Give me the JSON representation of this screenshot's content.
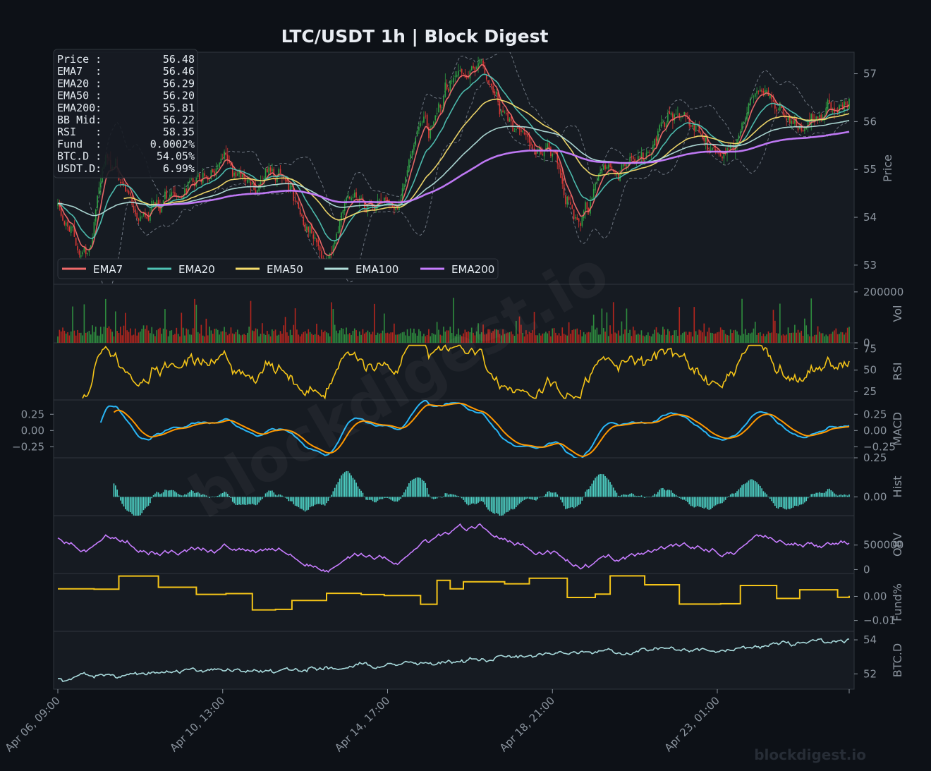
{
  "chart_data": [
    {
      "panel": "price",
      "type": "candlestick",
      "title": "LTC/USDT  1h  |  Block Digest",
      "ylabel": "Price",
      "ylim": [
        52.6,
        57.45
      ],
      "yticks": [
        "53",
        "54",
        "55",
        "56",
        "57"
      ],
      "grid": true,
      "legend_position": "bottom-left",
      "x_ticks": [
        "Apr 06, 09:00",
        "Apr 10, 13:00",
        "Apr 14, 17:00",
        "Apr 18, 21:00",
        "Apr 23, 01:00"
      ],
      "x_range": [
        "Apr 06, 09:00",
        "Apr 26, 09:00"
      ],
      "close_anchors": [
        [
          "Apr 06, 09:00",
          54.3
        ],
        [
          "Apr 07, 00:00",
          53.2
        ],
        [
          "Apr 07, 17:00",
          55.2
        ],
        [
          "Apr 08, 13:00",
          54.0
        ],
        [
          "Apr 09, 06:00",
          54.6
        ],
        [
          "Apr 10, 13:00",
          55.0
        ],
        [
          "Apr 11, 06:00",
          54.6
        ],
        [
          "Apr 11, 17:00",
          55.1
        ],
        [
          "Apr 13, 02:00",
          53.2
        ],
        [
          "Apr 13, 17:00",
          54.5
        ],
        [
          "Apr 14, 17:00",
          54.2
        ],
        [
          "Apr 15, 16:00",
          55.7
        ],
        [
          "Apr 16, 08:00",
          56.7
        ],
        [
          "Apr 17, 01:00",
          57.1
        ],
        [
          "Apr 17, 17:00",
          56.0
        ],
        [
          "Apr 18, 21:00",
          55.3
        ],
        [
          "Apr 19, 12:00",
          54.0
        ],
        [
          "Apr 20, 13:00",
          55.1
        ],
        [
          "Apr 21, 04:00",
          55.3
        ],
        [
          "Apr 22, 06:00",
          56.2
        ],
        [
          "Apr 23, 01:00",
          55.3
        ],
        [
          "Apr 24, 04:00",
          56.5
        ],
        [
          "Apr 25, 05:00",
          55.8
        ],
        [
          "Apr 26, 09:00",
          56.48
        ]
      ],
      "series": [
        {
          "name": "EMA7",
          "color": "#f06a6a"
        },
        {
          "name": "EMA20",
          "color": "#4fc3b4"
        },
        {
          "name": "EMA50",
          "color": "#f5dc6b"
        },
        {
          "name": "EMA100",
          "color": "#b2dfdb"
        },
        {
          "name": "EMA200",
          "color": "#c77dff"
        }
      ],
      "bollinger_bands": true,
      "info_box": [
        {
          "label": "Price :",
          "value": "56.48"
        },
        {
          "label": "EMA7  :",
          "value": "56.46"
        },
        {
          "label": "EMA20 :",
          "value": "56.29"
        },
        {
          "label": "EMA50 :",
          "value": "56.20"
        },
        {
          "label": "EMA200:",
          "value": "55.81"
        },
        {
          "label": "BB Mid:",
          "value": "56.22"
        },
        {
          "label": "RSI   :",
          "value": "58.35"
        },
        {
          "label": "Fund  :",
          "value": "0.0002%"
        },
        {
          "label": "BTC.D :",
          "value": "54.05%"
        },
        {
          "label": "USDT.D:",
          "value": "6.99%"
        }
      ]
    },
    {
      "panel": "volume",
      "type": "bar",
      "ylabel": "Vol",
      "ylim": [
        0,
        230000
      ],
      "yticks": [
        "0",
        "200000"
      ],
      "colors": {
        "up": "#2e8b3e",
        "down": "#b3261e"
      }
    },
    {
      "panel": "rsi",
      "type": "line",
      "ylabel": "RSI",
      "ylim": [
        15,
        82
      ],
      "yticks": [
        "25",
        "50",
        "75"
      ],
      "color": "#f5c518"
    },
    {
      "panel": "macd",
      "type": "line",
      "ylabel": "MACD",
      "ylim": [
        -0.42,
        0.47
      ],
      "yticks": [
        "-0.25",
        "0.00",
        "0.25"
      ],
      "yticks_left": [
        "-0.25",
        "0.00",
        "0.25"
      ],
      "series": [
        {
          "color": "#29b6f6"
        },
        {
          "color": "#ff9800"
        }
      ]
    },
    {
      "panel": "hist",
      "type": "bar",
      "ylabel": "Hist",
      "ylim": [
        -0.12,
        0.25
      ],
      "yticks": [
        "0.00",
        "0.25"
      ],
      "color": "#4dd0c4"
    },
    {
      "panel": "obv",
      "type": "line",
      "ylabel": "OBV",
      "ylim": [
        -80000,
        1100000
      ],
      "yticks": [
        "0",
        "500000"
      ],
      "color": "#c77dff"
    },
    {
      "panel": "funding",
      "type": "step",
      "ylabel": "Fund%",
      "ylim": [
        -0.0145,
        0.0095
      ],
      "yticks": [
        "-0.01",
        "0.00"
      ],
      "color": "#f5c518"
    },
    {
      "panel": "btcd",
      "type": "line",
      "ylabel": "BTC.D",
      "ylim": [
        51.1,
        54.5
      ],
      "yticks": [
        "52",
        "54"
      ],
      "color": "#a8dadc"
    }
  ],
  "watermark": "blockdigest.io",
  "footer_watermark": "blockdigest.io"
}
